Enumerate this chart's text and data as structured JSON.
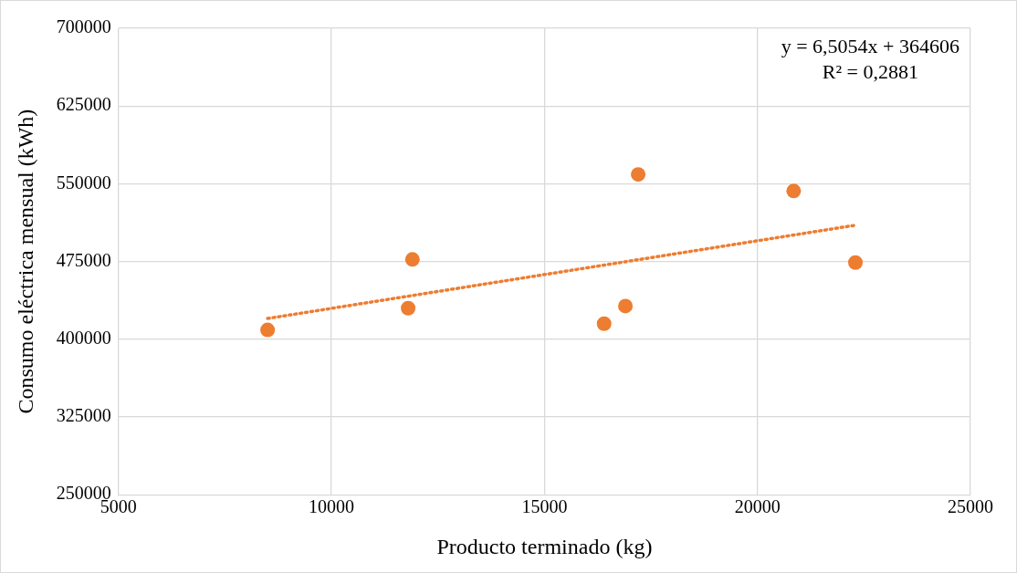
{
  "chart_data": {
    "type": "scatter",
    "xlabel": "Producto terminado (kg)",
    "ylabel": "Consumo eléctrica mensual (kWh)",
    "x": [
      8500,
      11900,
      11800,
      16400,
      16900,
      17200,
      20850,
      22300
    ],
    "series": [
      {
        "type": "scatter",
        "color": "#ed7d31",
        "marker": "circle",
        "values": [
          409000,
          477000,
          430000,
          415000,
          432000,
          559000,
          543000,
          474000
        ]
      },
      {
        "type": "line",
        "color": "#ed7d31",
        "marker": "none",
        "line_style": "dotted",
        "x": [
          8500,
          22300
        ],
        "values": [
          420000,
          510000
        ]
      }
    ],
    "xlim": [
      5000,
      25000
    ],
    "xticks": [
      5000,
      10000,
      15000,
      20000,
      25000
    ],
    "ylim": [
      250000,
      700000
    ],
    "yticks": [
      250000,
      325000,
      400000,
      475000,
      550000,
      625000,
      700000
    ],
    "grid": true,
    "legend": false,
    "annotations": [
      "y = 6,5054x + 364606",
      "R² = 0,2881"
    ]
  }
}
